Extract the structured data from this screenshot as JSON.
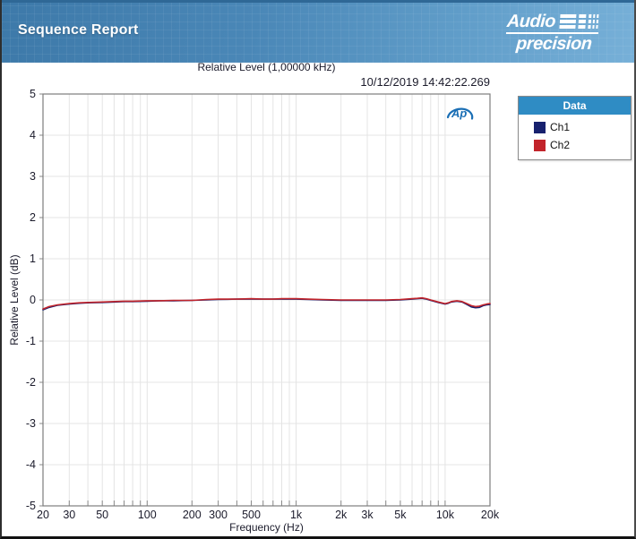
{
  "header": {
    "title": "Sequence Report",
    "brand_line1": "Audio",
    "brand_line2": "precision"
  },
  "legend": {
    "title": "Data",
    "header_bg": "#2f8cc4",
    "items": [
      {
        "label": "Ch1",
        "color": "#17216e"
      },
      {
        "label": "Ch2",
        "color": "#c2242b"
      }
    ]
  },
  "watermark": {
    "text": "Ap",
    "color": "#1b6fb5"
  },
  "chart_data": {
    "type": "line",
    "title": "Relative Level (1,00000 kHz)",
    "timestamp": "10/12/2019 14:42:22.269",
    "xlabel": "Frequency (Hz)",
    "ylabel": "Relative Level (dB)",
    "x_scale": "log",
    "xlim": [
      20,
      20000
    ],
    "ylim": [
      -5,
      5
    ],
    "grid": true,
    "legend_position": "right",
    "x_ticks": [
      {
        "value": 20,
        "label": "20"
      },
      {
        "value": 30,
        "label": "30"
      },
      {
        "value": 50,
        "label": "50"
      },
      {
        "value": 100,
        "label": "100"
      },
      {
        "value": 200,
        "label": "200"
      },
      {
        "value": 300,
        "label": "300"
      },
      {
        "value": 500,
        "label": "500"
      },
      {
        "value": 1000,
        "label": "1k"
      },
      {
        "value": 2000,
        "label": "2k"
      },
      {
        "value": 3000,
        "label": "3k"
      },
      {
        "value": 5000,
        "label": "5k"
      },
      {
        "value": 10000,
        "label": "10k"
      },
      {
        "value": 20000,
        "label": "20k"
      }
    ],
    "x_minor_ticks": [
      20,
      30,
      40,
      50,
      60,
      70,
      80,
      90,
      100,
      200,
      300,
      400,
      500,
      600,
      700,
      800,
      900,
      1000,
      2000,
      3000,
      4000,
      5000,
      6000,
      7000,
      8000,
      9000,
      10000,
      20000
    ],
    "y_ticks": [
      {
        "value": 5,
        "label": "5"
      },
      {
        "value": 4,
        "label": "4"
      },
      {
        "value": 3,
        "label": "3"
      },
      {
        "value": 2,
        "label": "2"
      },
      {
        "value": 1,
        "label": "1"
      },
      {
        "value": 0,
        "label": "0"
      },
      {
        "value": -1,
        "label": "-1"
      },
      {
        "value": -2,
        "label": "-2"
      },
      {
        "value": -3,
        "label": "-3"
      },
      {
        "value": -4,
        "label": "-4"
      },
      {
        "value": -5,
        "label": "-5"
      }
    ],
    "series": [
      {
        "name": "Ch1",
        "color": "#17216e",
        "points": [
          [
            20,
            -0.24
          ],
          [
            22,
            -0.18
          ],
          [
            25,
            -0.13
          ],
          [
            30,
            -0.1
          ],
          [
            35,
            -0.08
          ],
          [
            40,
            -0.07
          ],
          [
            50,
            -0.06
          ],
          [
            60,
            -0.05
          ],
          [
            70,
            -0.04
          ],
          [
            80,
            -0.04
          ],
          [
            100,
            -0.03
          ],
          [
            120,
            -0.02
          ],
          [
            150,
            -0.02
          ],
          [
            200,
            -0.01
          ],
          [
            250,
            0.0
          ],
          [
            300,
            0.01
          ],
          [
            400,
            0.02
          ],
          [
            500,
            0.02
          ],
          [
            600,
            0.02
          ],
          [
            700,
            0.02
          ],
          [
            800,
            0.02
          ],
          [
            1000,
            0.02
          ],
          [
            1200,
            0.01
          ],
          [
            1500,
            0.0
          ],
          [
            2000,
            -0.01
          ],
          [
            2500,
            -0.01
          ],
          [
            3000,
            -0.01
          ],
          [
            4000,
            -0.01
          ],
          [
            5000,
            0.0
          ],
          [
            6000,
            0.02
          ],
          [
            6500,
            0.03
          ],
          [
            7000,
            0.04
          ],
          [
            7500,
            0.02
          ],
          [
            8000,
            -0.01
          ],
          [
            9000,
            -0.06
          ],
          [
            10000,
            -0.1
          ],
          [
            10500,
            -0.08
          ],
          [
            11000,
            -0.05
          ],
          [
            12000,
            -0.03
          ],
          [
            13000,
            -0.05
          ],
          [
            14000,
            -0.11
          ],
          [
            15000,
            -0.17
          ],
          [
            16000,
            -0.19
          ],
          [
            17000,
            -0.18
          ],
          [
            18000,
            -0.14
          ],
          [
            19000,
            -0.12
          ],
          [
            20000,
            -0.11
          ]
        ]
      },
      {
        "name": "Ch2",
        "color": "#c2242b",
        "points": [
          [
            20,
            -0.22
          ],
          [
            22,
            -0.16
          ],
          [
            25,
            -0.12
          ],
          [
            30,
            -0.09
          ],
          [
            35,
            -0.07
          ],
          [
            40,
            -0.06
          ],
          [
            50,
            -0.05
          ],
          [
            60,
            -0.04
          ],
          [
            70,
            -0.03
          ],
          [
            80,
            -0.03
          ],
          [
            100,
            -0.02
          ],
          [
            120,
            -0.02
          ],
          [
            150,
            -0.01
          ],
          [
            200,
            -0.01
          ],
          [
            250,
            0.01
          ],
          [
            300,
            0.02
          ],
          [
            400,
            0.02
          ],
          [
            500,
            0.03
          ],
          [
            600,
            0.02
          ],
          [
            700,
            0.02
          ],
          [
            800,
            0.03
          ],
          [
            1000,
            0.03
          ],
          [
            1200,
            0.02
          ],
          [
            1500,
            0.01
          ],
          [
            2000,
            0.0
          ],
          [
            2500,
            0.0
          ],
          [
            3000,
            0.0
          ],
          [
            4000,
            0.0
          ],
          [
            5000,
            0.01
          ],
          [
            6000,
            0.03
          ],
          [
            6500,
            0.04
          ],
          [
            7000,
            0.05
          ],
          [
            7500,
            0.03
          ],
          [
            8000,
            0.0
          ],
          [
            9000,
            -0.05
          ],
          [
            10000,
            -0.09
          ],
          [
            10500,
            -0.07
          ],
          [
            11000,
            -0.04
          ],
          [
            12000,
            -0.02
          ],
          [
            13000,
            -0.04
          ],
          [
            14000,
            -0.09
          ],
          [
            15000,
            -0.14
          ],
          [
            16000,
            -0.16
          ],
          [
            17000,
            -0.15
          ],
          [
            18000,
            -0.12
          ],
          [
            19000,
            -0.1
          ],
          [
            20000,
            -0.09
          ]
        ]
      }
    ]
  }
}
